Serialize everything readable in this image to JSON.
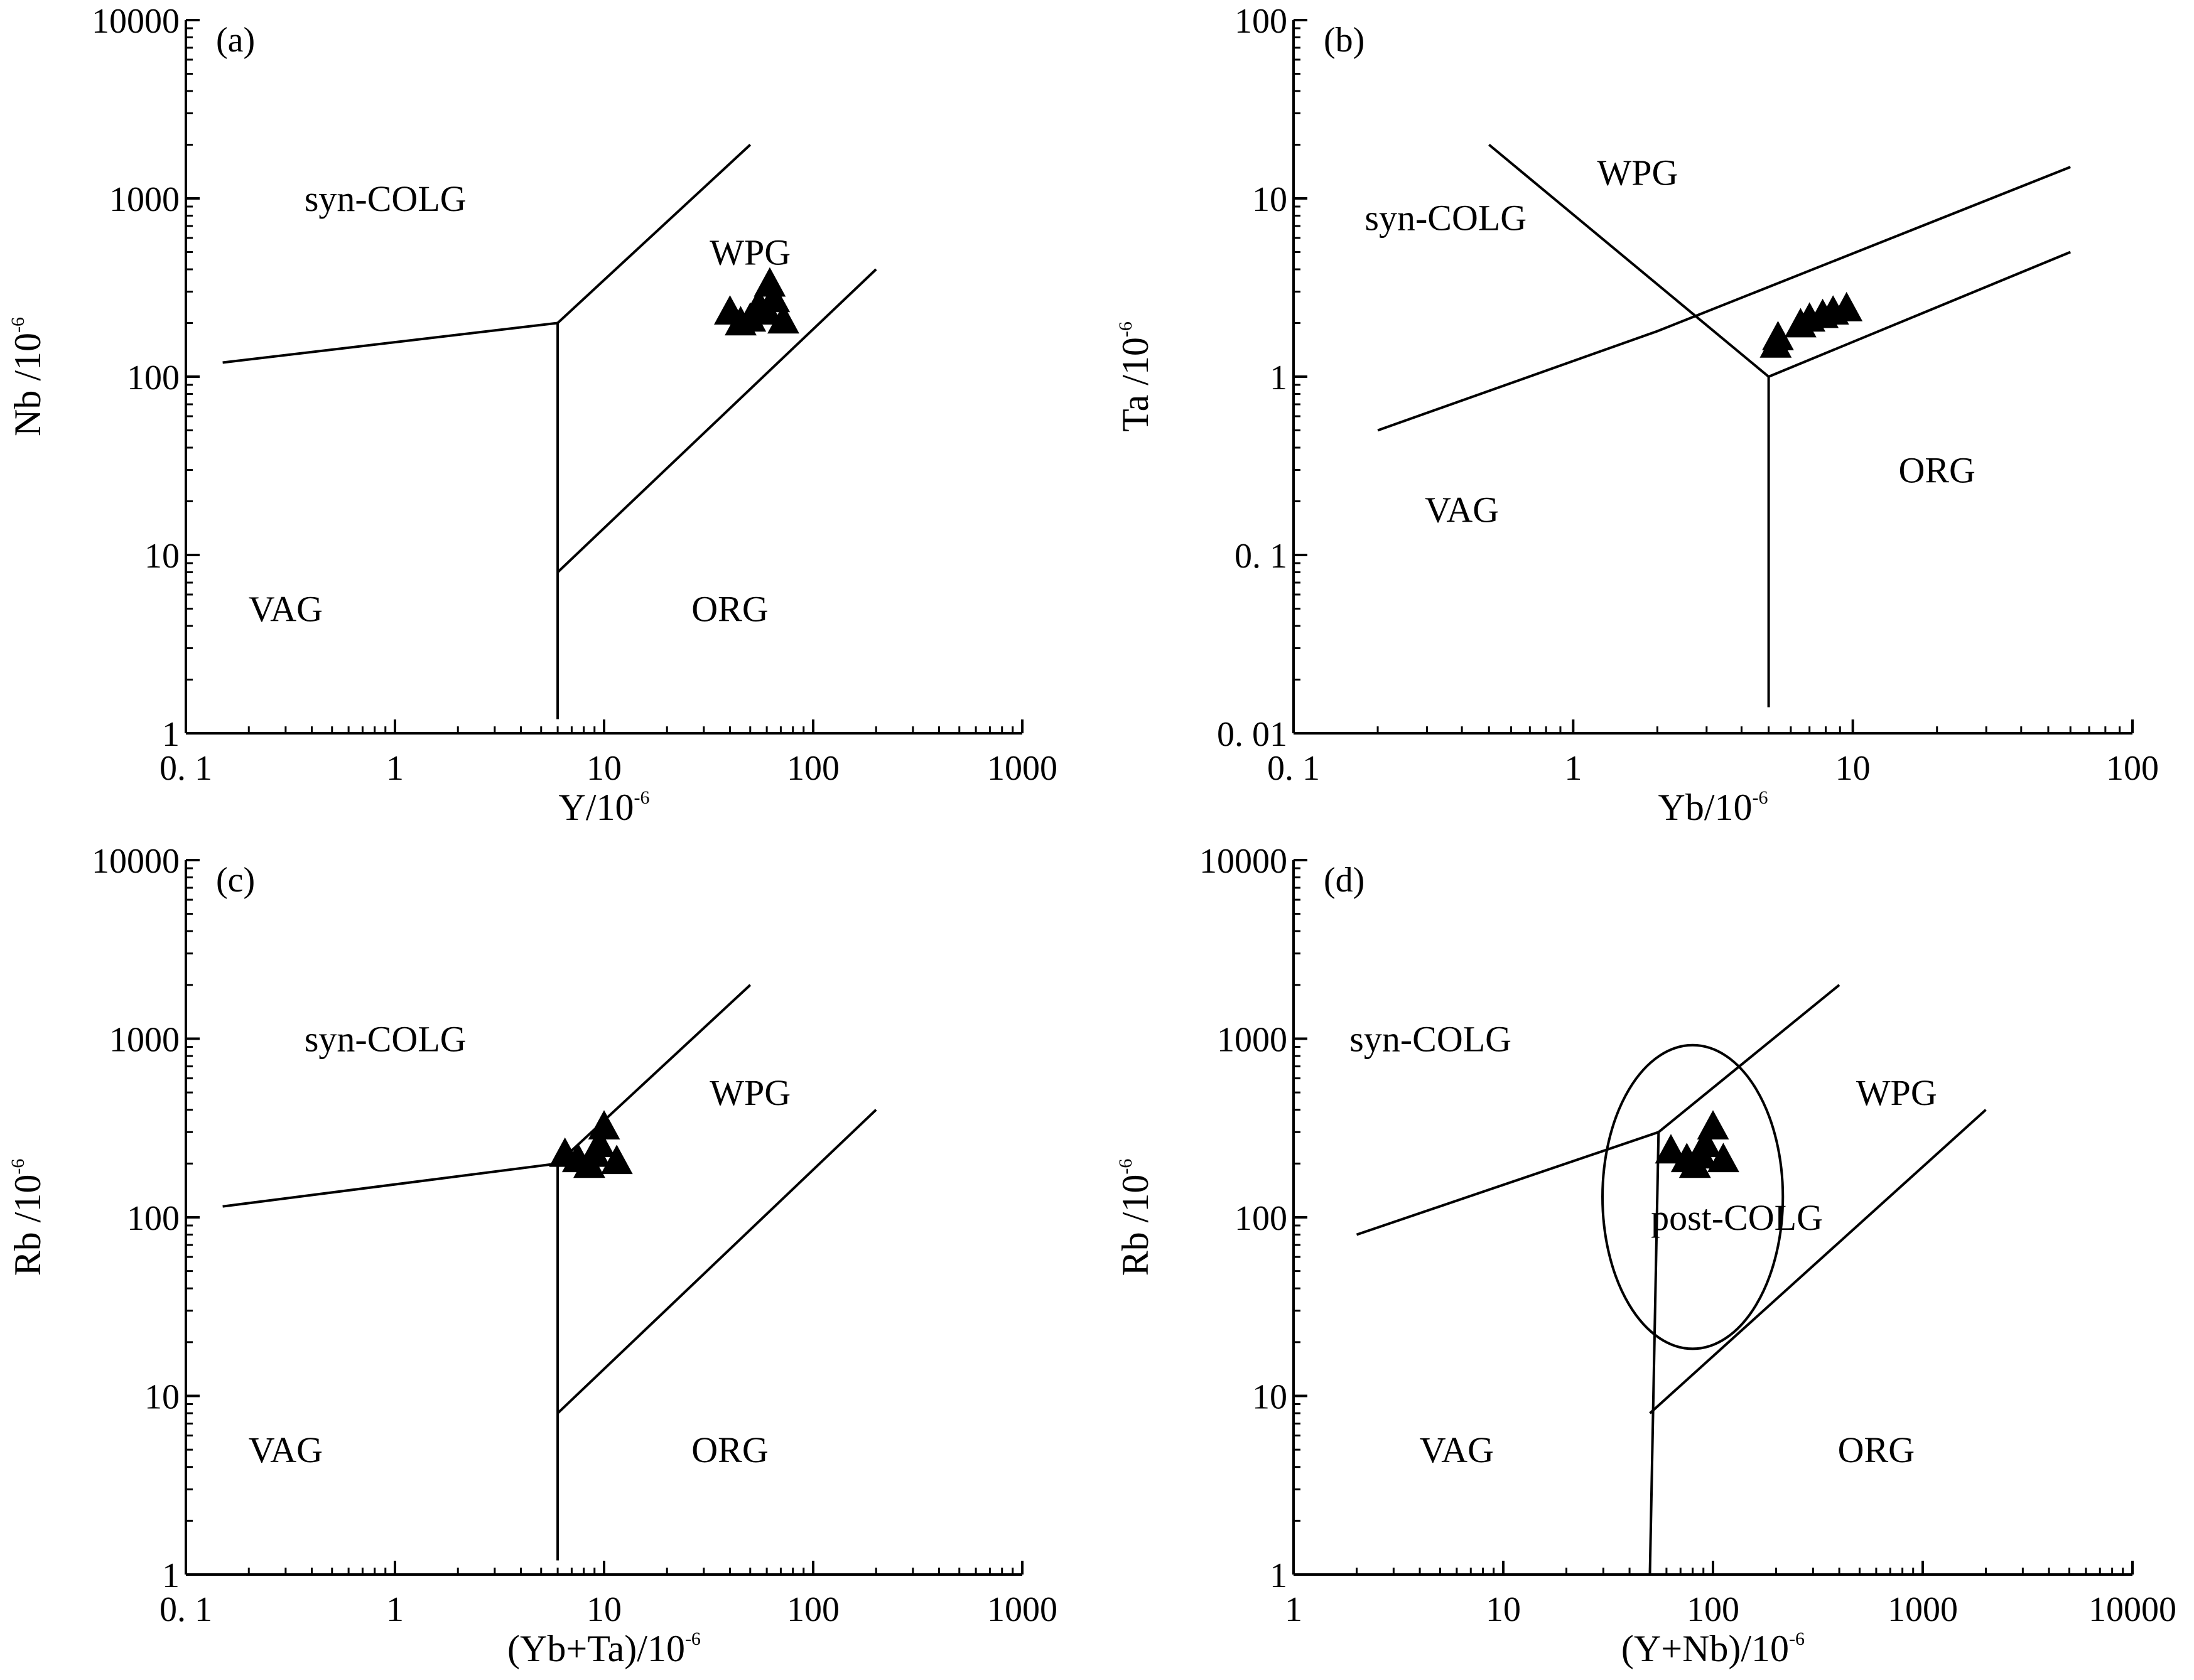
{
  "chart_data": [
    {
      "panel": "(a)",
      "type": "scatter",
      "xlabel": "Y/10",
      "xlabel_exp": "-6",
      "ylabel": "Nb /10",
      "ylabel_exp": "-6",
      "xscale": "log",
      "yscale": "log",
      "xlim": [
        0.1,
        1000
      ],
      "ylim": [
        1,
        10000
      ],
      "xticks": [
        0.1,
        1,
        10,
        100,
        1000
      ],
      "xtick_labels": [
        "0. 1",
        "1",
        "10",
        "100",
        "1000"
      ],
      "yticks": [
        1,
        10,
        100,
        1000,
        10000
      ],
      "ytick_labels": [
        "1",
        "10",
        "100",
        "1000",
        "10000"
      ],
      "boundaries": [
        [
          [
            0.15,
            120
          ],
          [
            6,
            200
          ],
          [
            50,
            2000
          ]
        ],
        [
          [
            6,
            1.2
          ],
          [
            6,
            200
          ]
        ],
        [
          [
            6,
            8
          ],
          [
            200,
            400
          ]
        ]
      ],
      "fields": [
        {
          "label": "syn-COLG",
          "x": 0.9,
          "y": 1000
        },
        {
          "label": "WPG",
          "x": 50,
          "y": 500
        },
        {
          "label": "VAG",
          "x": 0.3,
          "y": 5
        },
        {
          "label": "ORG",
          "x": 40,
          "y": 5
        }
      ],
      "points": [
        [
          40,
          230
        ],
        [
          45,
          200
        ],
        [
          50,
          210
        ],
        [
          55,
          250
        ],
        [
          60,
          230
        ],
        [
          62,
          330
        ],
        [
          65,
          270
        ],
        [
          72,
          205
        ]
      ],
      "marker": "triangle"
    },
    {
      "panel": "(b)",
      "type": "scatter",
      "xlabel": "Yb/10",
      "xlabel_exp": "-6",
      "ylabel": "Ta /10",
      "ylabel_exp": "-6",
      "xscale": "log",
      "yscale": "log",
      "xlim": [
        0.1,
        100
      ],
      "ylim": [
        0.01,
        100
      ],
      "xticks": [
        0.1,
        1,
        10,
        100
      ],
      "xtick_labels": [
        "0. 1",
        "1",
        "10",
        "100"
      ],
      "yticks": [
        0.01,
        0.1,
        1,
        10,
        100
      ],
      "ytick_labels": [
        "0. 01",
        "0. 1",
        "1",
        "10",
        "100"
      ],
      "boundaries": [
        [
          [
            0.2,
            0.5
          ],
          [
            2,
            1.8
          ],
          [
            60,
            15
          ]
        ],
        [
          [
            0.5,
            20
          ],
          [
            5,
            1
          ]
        ],
        [
          [
            5,
            1
          ],
          [
            60,
            5
          ]
        ],
        [
          [
            5,
            0.014
          ],
          [
            5,
            1
          ]
        ]
      ],
      "fields": [
        {
          "label": "WPG",
          "x": 1.7,
          "y": 14
        },
        {
          "label": "syn-COLG",
          "x": 0.35,
          "y": 7.8
        },
        {
          "label": "VAG",
          "x": 0.4,
          "y": 0.18
        },
        {
          "label": "ORG",
          "x": 20,
          "y": 0.3
        }
      ],
      "points": [
        [
          5.3,
          1.5
        ],
        [
          5.4,
          1.65
        ],
        [
          6.5,
          1.95
        ],
        [
          7,
          2.1
        ],
        [
          7.8,
          2.2
        ],
        [
          8.5,
          2.3
        ],
        [
          9.5,
          2.4
        ]
      ],
      "marker": "triangle"
    },
    {
      "panel": "(c)",
      "type": "scatter",
      "xlabel": "(Yb+Ta)/10",
      "xlabel_exp": "-6",
      "ylabel": "Rb /10",
      "ylabel_exp": "-6",
      "xscale": "log",
      "yscale": "log",
      "xlim": [
        0.1,
        1000
      ],
      "ylim": [
        1,
        10000
      ],
      "xticks": [
        0.1,
        1,
        10,
        100,
        1000
      ],
      "xtick_labels": [
        "0. 1",
        "1",
        "10",
        "100",
        "1000"
      ],
      "yticks": [
        1,
        10,
        100,
        1000,
        10000
      ],
      "ytick_labels": [
        "1",
        "10",
        "100",
        "1000",
        "10000"
      ],
      "boundaries": [
        [
          [
            0.15,
            115
          ],
          [
            6,
            200
          ],
          [
            50,
            2000
          ]
        ],
        [
          [
            6,
            1.2
          ],
          [
            6,
            200
          ]
        ],
        [
          [
            6,
            8
          ],
          [
            200,
            400
          ]
        ]
      ],
      "fields": [
        {
          "label": "syn-COLG",
          "x": 0.9,
          "y": 1000
        },
        {
          "label": "WPG",
          "x": 50,
          "y": 500
        },
        {
          "label": "VAG",
          "x": 0.3,
          "y": 5
        },
        {
          "label": "ORG",
          "x": 40,
          "y": 5
        }
      ],
      "points": [
        [
          6.5,
          225
        ],
        [
          7.5,
          210
        ],
        [
          8.5,
          195
        ],
        [
          9,
          225
        ],
        [
          9.5,
          255
        ],
        [
          10,
          320
        ],
        [
          11.5,
          205
        ]
      ],
      "marker": "triangle"
    },
    {
      "panel": "(d)",
      "type": "scatter",
      "xlabel": "(Y+Nb)/10",
      "xlabel_exp": "-6",
      "ylabel": "Rb /10",
      "ylabel_exp": "-6",
      "xscale": "log",
      "yscale": "log",
      "xlim": [
        1,
        10000
      ],
      "ylim": [
        1,
        10000
      ],
      "xticks": [
        1,
        10,
        100,
        1000,
        10000
      ],
      "xtick_labels": [
        "1",
        "10",
        "100",
        "1000",
        "10000"
      ],
      "yticks": [
        1,
        10,
        100,
        1000,
        10000
      ],
      "ytick_labels": [
        "1",
        "10",
        "100",
        "1000",
        "10000"
      ],
      "boundaries": [
        [
          [
            2,
            80
          ],
          [
            55,
            300
          ],
          [
            400,
            2000
          ]
        ],
        [
          [
            50,
            1
          ],
          [
            55,
            300
          ]
        ],
        [
          [
            50,
            8
          ],
          [
            2000,
            400
          ]
        ]
      ],
      "ellipse": {
        "cx": 80,
        "cy": 130,
        "rx_decades": 0.43,
        "ry_decades": 0.85
      },
      "fields": [
        {
          "label": "syn-COLG",
          "x": 4.5,
          "y": 1000
        },
        {
          "label": "WPG",
          "x": 750,
          "y": 500
        },
        {
          "label": "post-COLG",
          "x": 130,
          "y": 100
        },
        {
          "label": "VAG",
          "x": 6,
          "y": 5
        },
        {
          "label": "ORG",
          "x": 600,
          "y": 5
        }
      ],
      "points": [
        [
          63,
          235
        ],
        [
          75,
          210
        ],
        [
          82,
          195
        ],
        [
          88,
          220
        ],
        [
          92,
          255
        ],
        [
          100,
          320
        ],
        [
          112,
          210
        ]
      ],
      "marker": "triangle"
    }
  ]
}
